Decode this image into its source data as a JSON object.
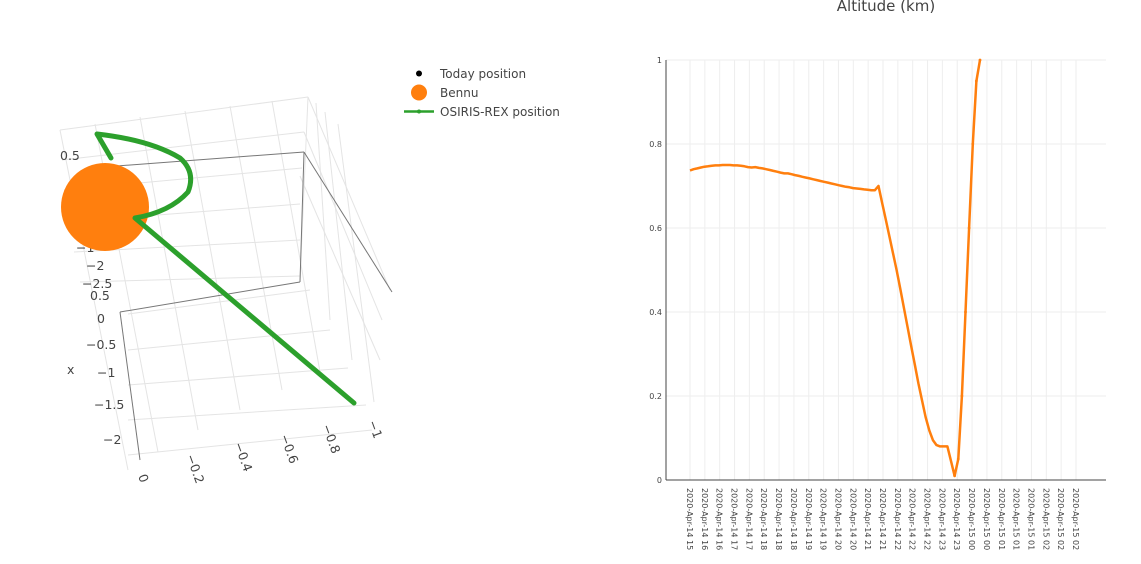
{
  "chart_data": [
    {
      "type": "scatter3d",
      "legend": [
        {
          "label": "Today position",
          "color": "#000000",
          "symbol": "dot"
        },
        {
          "label": "Bennu",
          "color": "#ff7f0e",
          "symbol": "big-dot"
        },
        {
          "label": "OSIRIS-REX position",
          "color": "#2ca02c",
          "symbol": "line"
        }
      ],
      "axes": {
        "x": {
          "label": "x",
          "ticks": [
            "0.5",
            "0",
            "−0.5",
            "−1",
            "−1.5",
            "−2"
          ]
        },
        "y": {
          "label": "",
          "ticks": [
            "−1",
            "−2",
            "−2.5"
          ]
        },
        "z": {
          "label": "",
          "ticks": [
            "0",
            "−0.2",
            "−0.4",
            "−0.6",
            "−0.8",
            "−1"
          ]
        },
        "top_tick": "0.5"
      },
      "colors": {
        "bennu": "#ff7f0e",
        "osiris_rex": "#2ca02c",
        "grid": "#e6e6e6",
        "axis": "#666666"
      }
    },
    {
      "type": "line",
      "title": "Altitude (km)",
      "xlabel": "",
      "ylabel": "",
      "ylim": [
        0,
        1
      ],
      "y_ticks": [
        "0",
        "0.2",
        "0.4",
        "0.6",
        "0.8",
        "1"
      ],
      "x_ticks": [
        "2020-Apr-14 15",
        "2020-Apr-14 16",
        "2020-Apr-14 16",
        "2020-Apr-14 17",
        "2020-Apr-14 17",
        "2020-Apr-14 18",
        "2020-Apr-14 18",
        "2020-Apr-14 18",
        "2020-Apr-14 19",
        "2020-Apr-14 19",
        "2020-Apr-14 20",
        "2020-Apr-14 20",
        "2020-Apr-14 21",
        "2020-Apr-14 21",
        "2020-Apr-14 22",
        "2020-Apr-14 22",
        "2020-Apr-14 22",
        "2020-Apr-14 23",
        "2020-Apr-14 23",
        "2020-Apr-15 00",
        "2020-Apr-15 00",
        "2020-Apr-15 01",
        "2020-Apr-15 01",
        "2020-Apr-15 01",
        "2020-Apr-15 02",
        "2020-Apr-15 02",
        "2020-Apr-15 02"
      ],
      "series": [
        {
          "color": "#ff7f0e",
          "x": [
            0,
            1,
            2,
            3,
            4,
            5,
            6,
            7,
            8,
            9,
            10,
            11,
            12,
            13,
            14,
            15,
            16,
            17,
            18,
            19,
            20,
            21,
            22,
            23,
            24,
            25,
            26,
            27,
            28,
            29,
            30,
            31,
            32,
            33,
            34,
            35,
            36,
            37,
            38,
            39,
            40,
            41,
            42,
            43,
            44,
            45,
            46,
            47,
            48,
            49,
            50,
            51,
            52,
            53,
            54,
            55,
            56,
            57,
            58,
            59,
            60,
            61,
            62,
            63,
            64,
            65,
            66,
            67,
            68,
            69,
            70,
            71,
            72,
            73,
            74,
            75,
            76,
            77,
            78,
            79,
            80
          ],
          "values": [
            0.737,
            0.74,
            0.742,
            0.744,
            0.746,
            0.747,
            0.748,
            0.749,
            0.749,
            0.75,
            0.75,
            0.75,
            0.749,
            0.749,
            0.748,
            0.747,
            0.745,
            0.744,
            0.745,
            0.743,
            0.742,
            0.74,
            0.738,
            0.736,
            0.734,
            0.732,
            0.73,
            0.73,
            0.728,
            0.726,
            0.724,
            0.722,
            0.72,
            0.718,
            0.716,
            0.714,
            0.712,
            0.71,
            0.708,
            0.706,
            0.704,
            0.702,
            0.7,
            0.698,
            0.697,
            0.695,
            0.694,
            0.693,
            0.692,
            0.691,
            0.69,
            0.69,
            0.7,
            0.66,
            0.62,
            0.58,
            0.54,
            0.5,
            0.455,
            0.41,
            0.365,
            0.32,
            0.275,
            0.23,
            0.19,
            0.15,
            0.118,
            0.095,
            0.083,
            0.08,
            0.08,
            0.08,
            0.045,
            0.01,
            0.05,
            0.2,
            0.4,
            0.6,
            0.8,
            0.95,
            1.0
          ]
        }
      ]
    }
  ]
}
